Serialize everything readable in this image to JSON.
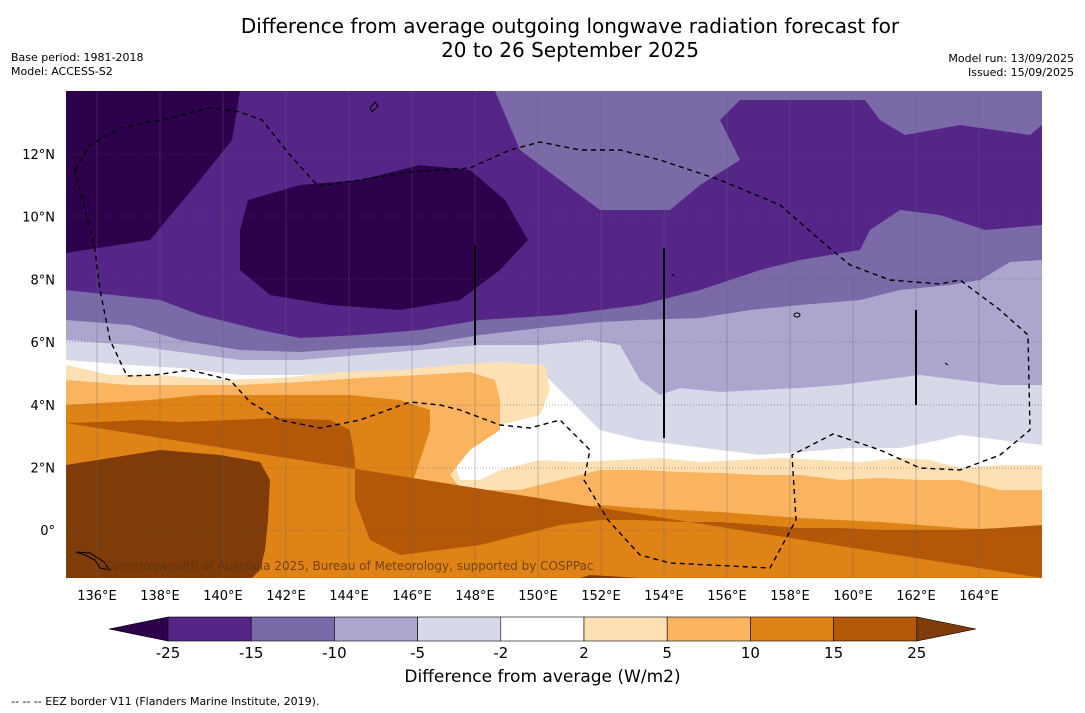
{
  "title_line1": "Difference from average outgoing longwave radiation forecast for",
  "title_line2": "20 to 26 September 2025",
  "base_period": "Base period: 1981-2018",
  "model": "Model: ACCESS-S2",
  "model_run": "Model run: 13/09/2025",
  "issued": "Issued: 15/09/2025",
  "credit": "Commonwealth of Australia 2025, Bureau of Meteorology, supported by COSPPac",
  "colorbar_label": "Difference from average (W/m2)",
  "footnote": "--  --  -- EEZ border V11 (Flanders Marine Institute, 2019).",
  "map_data": {
    "x_ticks": [
      "136°E",
      "138°E",
      "140°E",
      "142°E",
      "144°E",
      "146°E",
      "148°E",
      "150°E",
      "152°E",
      "154°E",
      "156°E",
      "158°E",
      "160°E",
      "162°E",
      "164°E"
    ],
    "y_ticks": [
      "12°N",
      "10°N",
      "8°N",
      "6°N",
      "4°N",
      "2°N",
      "0°"
    ],
    "colorbar_ticks": [
      "-25",
      "-15",
      "-10",
      "-5",
      "-2",
      "2",
      "5",
      "10",
      "15",
      "25"
    ],
    "colorbar_colors": [
      "#552688",
      "#7b6aa8",
      "#aca6cf",
      "#d7d8e8",
      "#ffffff",
      "#fee0b5",
      "#fab35e",
      "#e08316",
      "#b35806"
    ],
    "extend_low_color": "#2d004b",
    "extend_high_color": "#7f3b08"
  }
}
